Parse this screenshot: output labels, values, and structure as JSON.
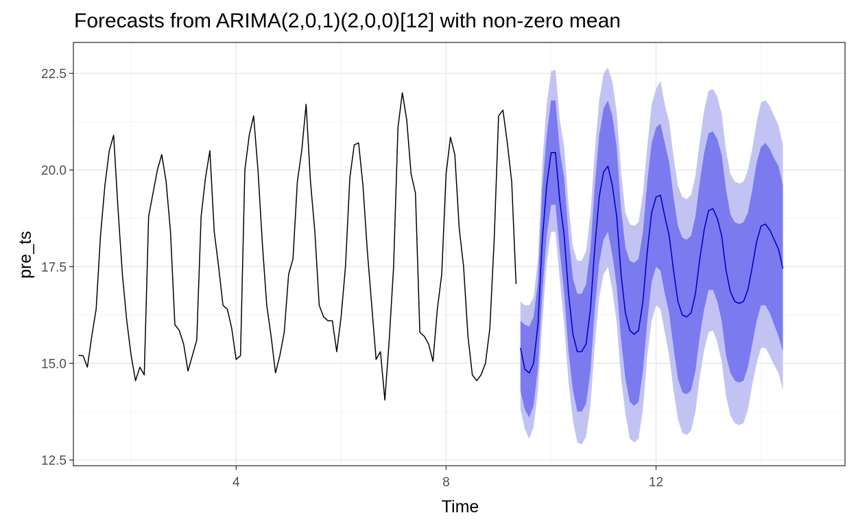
{
  "chart_data": {
    "type": "line",
    "title": "Forecasts from ARIMA(2,0,1)(2,0,0)[12] with non-zero mean",
    "xlabel": "Time",
    "ylabel": "pre_ts",
    "xlim": [
      0.9,
      15.6
    ],
    "ylim": [
      12.35,
      23.3
    ],
    "x_ticks": [
      4,
      8,
      12
    ],
    "y_ticks": [
      12.5,
      15.0,
      17.5,
      20.0,
      22.5
    ],
    "x_tick_labels": [
      "4",
      "8",
      "12"
    ],
    "y_tick_labels": [
      "12.5",
      "15.0",
      "17.5",
      "20.0",
      "22.5"
    ],
    "grid": true,
    "frequency": 12,
    "start": 1,
    "colors": {
      "observed": "#000000",
      "forecast": "#0000cc",
      "band80": "#7b7bef",
      "band95": "#c3c3f3"
    },
    "series": [
      {
        "role": "observed",
        "values": [
          15.2,
          15.2,
          14.9,
          15.7,
          16.4,
          18.3,
          19.6,
          20.5,
          20.9,
          19.0,
          17.3,
          16.1,
          15.2,
          14.55,
          14.9,
          14.7,
          18.8,
          19.4,
          20.0,
          20.4,
          19.7,
          18.4,
          16.0,
          15.85,
          15.5,
          14.8,
          15.2,
          15.6,
          18.8,
          19.8,
          20.5,
          18.4,
          17.5,
          16.5,
          16.4,
          15.9,
          15.1,
          15.2,
          20.0,
          20.9,
          21.4,
          20.0,
          18.1,
          16.5,
          15.7,
          14.75,
          15.2,
          15.8,
          17.3,
          17.7,
          19.7,
          20.5,
          21.7,
          19.7,
          18.4,
          16.5,
          16.2,
          16.1,
          16.1,
          15.3,
          16.2,
          17.5,
          19.8,
          20.65,
          20.7,
          19.6,
          17.9,
          16.5,
          15.1,
          15.3,
          14.05,
          15.6,
          17.5,
          21.1,
          22.0,
          21.3,
          19.9,
          19.4,
          15.8,
          15.7,
          15.5,
          15.05,
          16.4,
          17.3,
          19.9,
          20.85,
          20.4,
          18.5,
          17.5,
          15.7,
          14.7,
          14.55,
          14.7,
          15.0,
          15.9,
          18.2,
          21.4,
          21.55,
          20.7,
          19.7,
          17.05
        ]
      },
      {
        "role": "forecast",
        "mean": [
          15.4,
          14.85,
          14.75,
          15.0,
          16.0,
          18.2,
          19.6,
          20.45,
          20.45,
          19.2,
          18.3,
          16.8,
          15.75,
          15.3,
          15.3,
          15.5,
          16.4,
          18.0,
          19.3,
          19.95,
          20.1,
          19.6,
          18.8,
          17.3,
          16.3,
          15.85,
          15.75,
          15.85,
          16.6,
          17.9,
          18.9,
          19.3,
          19.35,
          18.8,
          18.3,
          17.4,
          16.6,
          16.25,
          16.2,
          16.3,
          16.8,
          17.7,
          18.45,
          18.95,
          19.0,
          18.75,
          18.3,
          17.4,
          16.85,
          16.6,
          16.55,
          16.6,
          16.9,
          17.5,
          18.15,
          18.55,
          18.6,
          18.45,
          18.2,
          17.95,
          17.45
        ],
        "lo80": [
          14.3,
          13.8,
          13.6,
          13.9,
          14.9,
          16.8,
          18.3,
          19.1,
          19.1,
          17.9,
          16.8,
          15.3,
          14.3,
          13.75,
          13.75,
          13.95,
          14.8,
          16.4,
          17.6,
          18.2,
          18.4,
          17.8,
          17.0,
          15.6,
          14.6,
          14.0,
          13.9,
          14.0,
          14.8,
          16.1,
          17.1,
          17.5,
          17.4,
          16.8,
          16.3,
          15.4,
          14.6,
          14.25,
          14.2,
          14.3,
          14.8,
          15.7,
          16.4,
          16.9,
          16.9,
          16.6,
          16.1,
          15.2,
          14.75,
          14.55,
          14.5,
          14.55,
          14.9,
          15.5,
          16.1,
          16.5,
          16.5,
          16.3,
          16.0,
          15.7,
          15.3
        ],
        "hi80": [
          16.1,
          16.0,
          15.95,
          16.2,
          17.1,
          19.5,
          20.9,
          21.8,
          21.8,
          20.5,
          19.8,
          18.3,
          17.2,
          16.8,
          16.8,
          17.05,
          17.95,
          19.6,
          20.9,
          21.6,
          21.8,
          21.4,
          20.6,
          19.0,
          18.0,
          17.65,
          17.6,
          17.7,
          18.4,
          19.7,
          20.7,
          21.1,
          21.2,
          20.7,
          20.2,
          19.3,
          18.55,
          18.25,
          18.2,
          18.3,
          18.8,
          19.7,
          20.45,
          20.95,
          21.0,
          20.8,
          20.4,
          19.5,
          18.85,
          18.65,
          18.6,
          18.65,
          18.9,
          19.5,
          20.2,
          20.6,
          20.7,
          20.55,
          20.3,
          20.1,
          19.6
        ],
        "lo95": [
          13.8,
          13.3,
          13.05,
          13.35,
          14.3,
          16.1,
          17.6,
          18.4,
          18.4,
          17.15,
          16.0,
          14.5,
          13.5,
          12.95,
          12.9,
          13.1,
          13.9,
          15.5,
          16.7,
          17.3,
          17.5,
          16.9,
          16.05,
          14.6,
          13.7,
          13.05,
          12.95,
          13.05,
          13.8,
          15.2,
          16.1,
          16.5,
          16.4,
          15.8,
          15.2,
          14.3,
          13.55,
          13.2,
          13.15,
          13.25,
          13.75,
          14.65,
          15.35,
          15.8,
          15.85,
          15.55,
          15.05,
          14.15,
          13.65,
          13.45,
          13.4,
          13.45,
          13.8,
          14.45,
          15.0,
          15.4,
          15.4,
          15.2,
          14.95,
          14.75,
          14.3
        ],
        "hi95": [
          16.6,
          16.5,
          16.5,
          16.7,
          17.7,
          20.2,
          21.7,
          22.55,
          22.6,
          21.3,
          20.6,
          19.1,
          18.0,
          17.65,
          17.65,
          17.9,
          18.85,
          20.5,
          21.8,
          22.5,
          22.65,
          22.3,
          21.5,
          19.95,
          18.9,
          18.6,
          18.55,
          18.65,
          19.4,
          20.6,
          21.7,
          22.1,
          22.3,
          21.7,
          21.25,
          20.35,
          19.6,
          19.3,
          19.25,
          19.35,
          19.85,
          20.75,
          21.55,
          22.05,
          22.1,
          21.9,
          21.45,
          20.5,
          19.9,
          19.7,
          19.65,
          19.7,
          20.0,
          20.55,
          21.25,
          21.75,
          21.8,
          21.65,
          21.4,
          21.15,
          20.65
        ]
      }
    ]
  }
}
